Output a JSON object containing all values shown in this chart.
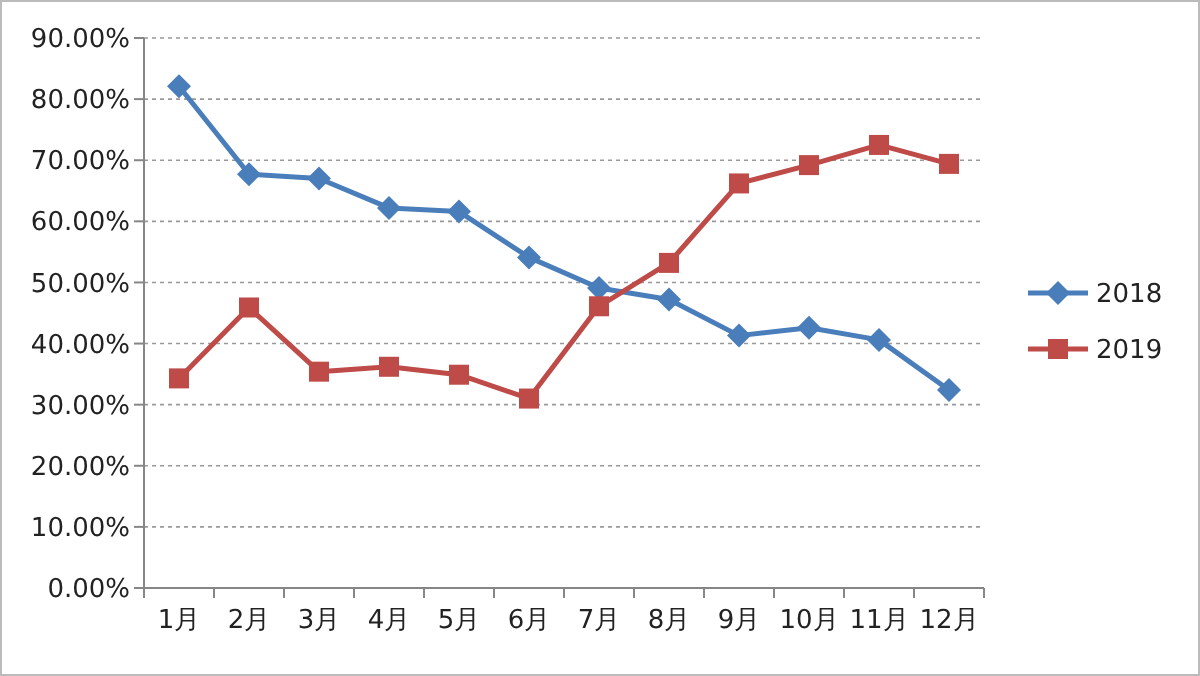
{
  "chart_data": {
    "type": "line",
    "categories": [
      "1月",
      "2月",
      "3月",
      "4月",
      "5月",
      "6月",
      "7月",
      "8月",
      "9月",
      "10月",
      "11月",
      "12月"
    ],
    "series": [
      {
        "name": "2018",
        "color": "#4a7ebb",
        "marker": "diamond",
        "values": [
          82.1,
          67.7,
          67.0,
          62.2,
          61.6,
          54.1,
          49.1,
          47.2,
          41.3,
          42.6,
          40.6,
          32.4
        ]
      },
      {
        "name": "2019",
        "color": "#be4b48",
        "marker": "square",
        "values": [
          34.3,
          45.9,
          35.4,
          36.2,
          34.9,
          31.0,
          46.1,
          53.2,
          66.2,
          69.2,
          72.5,
          69.4
        ]
      }
    ],
    "ylim": [
      0,
      90
    ],
    "yticks": [
      {
        "value": 0,
        "label": "0.00%"
      },
      {
        "value": 10,
        "label": "10.00%"
      },
      {
        "value": 20,
        "label": "20.00%"
      },
      {
        "value": 30,
        "label": "30.00%"
      },
      {
        "value": 40,
        "label": "40.00%"
      },
      {
        "value": 50,
        "label": "50.00%"
      },
      {
        "value": 60,
        "label": "60.00%"
      },
      {
        "value": 70,
        "label": "70.00%"
      },
      {
        "value": 80,
        "label": "80.00%"
      },
      {
        "value": 90,
        "label": "90.00%"
      }
    ],
    "grid": "y",
    "legend": "right"
  }
}
